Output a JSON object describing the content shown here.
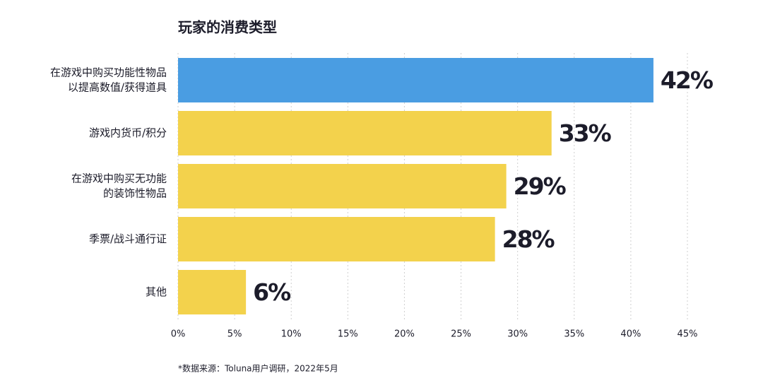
{
  "chart_data": {
    "type": "bar",
    "orientation": "horizontal",
    "title": "玩家的消费类型",
    "categories": [
      [
        "在游戏中购买功能性物品",
        "以提高数值/获得道具"
      ],
      [
        "游戏内货币/积分"
      ],
      [
        "在游戏中购买无功能",
        "的装饰性物品"
      ],
      [
        "季票/战斗通行证"
      ],
      [
        "其他"
      ]
    ],
    "values": [
      42,
      33,
      29,
      28,
      6
    ],
    "value_labels": [
      "42%",
      "33%",
      "29%",
      "28%",
      "6%"
    ],
    "colors": [
      "#4a9de2",
      "#f3d24c",
      "#f3d24c",
      "#f3d24c",
      "#f3d24c"
    ],
    "label_colors": [
      "#4a9de2",
      "#1c1c2a",
      "#1c1c2a",
      "#1c1c2a",
      "#1c1c2a"
    ],
    "xlim": [
      0,
      45
    ],
    "xticks": [
      {
        "value": 0,
        "label": "0%"
      },
      {
        "value": 5,
        "label": "5%"
      },
      {
        "value": 10,
        "label": "10%"
      },
      {
        "value": 15,
        "label": "15%"
      },
      {
        "value": 20,
        "label": "20%"
      },
      {
        "value": 25,
        "label": "25%"
      },
      {
        "value": 30,
        "label": "30%"
      },
      {
        "value": 35,
        "label": "35%"
      },
      {
        "value": 40,
        "label": "40%"
      },
      {
        "value": 45,
        "label": "45%"
      }
    ],
    "grid": true,
    "source": "*数据来源：Toluna用户调研，2022年5月"
  }
}
